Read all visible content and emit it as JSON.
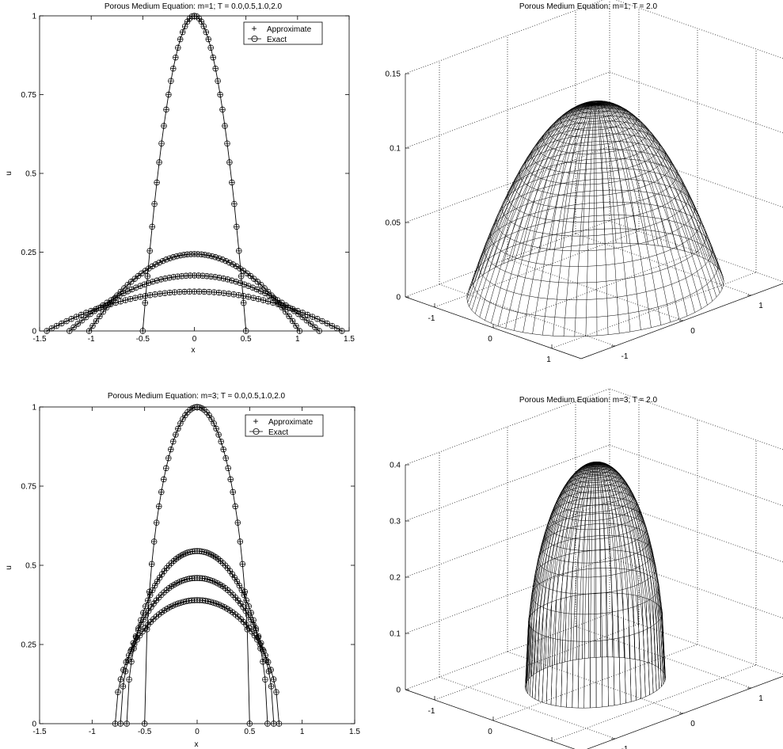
{
  "figure": {
    "panels": [
      {
        "title": "Porous Medium Equation: m=1; T = 0.0,0.5,1.0,2.0",
        "xlabel": "x",
        "ylabel": "u"
      },
      {
        "title": "Porous Medium Equation: m=1; T = 2.0"
      },
      {
        "title": "Porous Medium Equation: m=3; T = 0.0,0.5,1.0,2.0",
        "xlabel": "x",
        "ylabel": "u"
      },
      {
        "title": "Porous Medium Equation: m=3; T = 2.0"
      }
    ],
    "legend": {
      "approximate": "Approximate",
      "exact": "Exact"
    }
  },
  "chart_data": [
    {
      "type": "line",
      "title": "Porous Medium Equation: m=1; T = 0.0,0.5,1.0,2.0",
      "xlabel": "x",
      "ylabel": "u",
      "xlim": [
        -1.5,
        1.5
      ],
      "ylim": [
        0,
        1
      ],
      "xticks": [
        "-1.5",
        "-1",
        "-0.5",
        "0",
        "0.5",
        "1",
        "1.5"
      ],
      "yticks": [
        "0",
        "0.25",
        "0.5",
        "0.75",
        "1"
      ],
      "legend_position": "top-right",
      "legend": [
        "Approximate",
        "Exact"
      ],
      "series": [
        {
          "T": 0.0,
          "peak": 1.0,
          "support": 0.5
        },
        {
          "T": 0.5,
          "peak": 0.244,
          "support": 1.02
        },
        {
          "T": 1.0,
          "peak": 0.176,
          "support": 1.21
        },
        {
          "T": 2.0,
          "peak": 0.125,
          "support": 1.43
        }
      ]
    },
    {
      "type": "surface",
      "title": "Porous Medium Equation: m=1; T = 2.0",
      "zlim": [
        0,
        0.15
      ],
      "zticks": [
        "0",
        "0.05",
        "0.1",
        "0.15"
      ],
      "xticks": [
        "-1",
        "0",
        "1"
      ],
      "yticks": [
        "-1",
        "0",
        "1"
      ],
      "peak": 0.125,
      "support_radius": 1.43
    },
    {
      "type": "line",
      "title": "Porous Medium Equation: m=3; T = 0.0,0.5,1.0,2.0",
      "xlabel": "x",
      "ylabel": "u",
      "xlim": [
        -1.5,
        1.5
      ],
      "ylim": [
        0,
        1
      ],
      "xticks": [
        "-1.5",
        "-1",
        "-0.5",
        "0",
        "0.5",
        "1",
        "1.5"
      ],
      "yticks": [
        "0",
        "0.25",
        "0.5",
        "0.75",
        "1"
      ],
      "legend_position": "top-right",
      "legend": [
        "Approximate",
        "Exact"
      ],
      "series": [
        {
          "T": 0.0,
          "peak": 1.0,
          "support": 0.5
        },
        {
          "T": 0.5,
          "peak": 0.545,
          "support": 0.67
        },
        {
          "T": 1.0,
          "peak": 0.46,
          "support": 0.73
        },
        {
          "T": 2.0,
          "peak": 0.39,
          "support": 0.78
        }
      ]
    },
    {
      "type": "surface",
      "title": "Porous Medium Equation: m=3; T = 2.0",
      "zlim": [
        0,
        0.4
      ],
      "zticks": [
        "0",
        "0.1",
        "0.2",
        "0.3",
        "0.4"
      ],
      "xticks": [
        "-1",
        "0",
        "1"
      ],
      "yticks": [
        "-1",
        "0",
        "1"
      ],
      "peak": 0.39,
      "support_radius": 0.78
    }
  ]
}
